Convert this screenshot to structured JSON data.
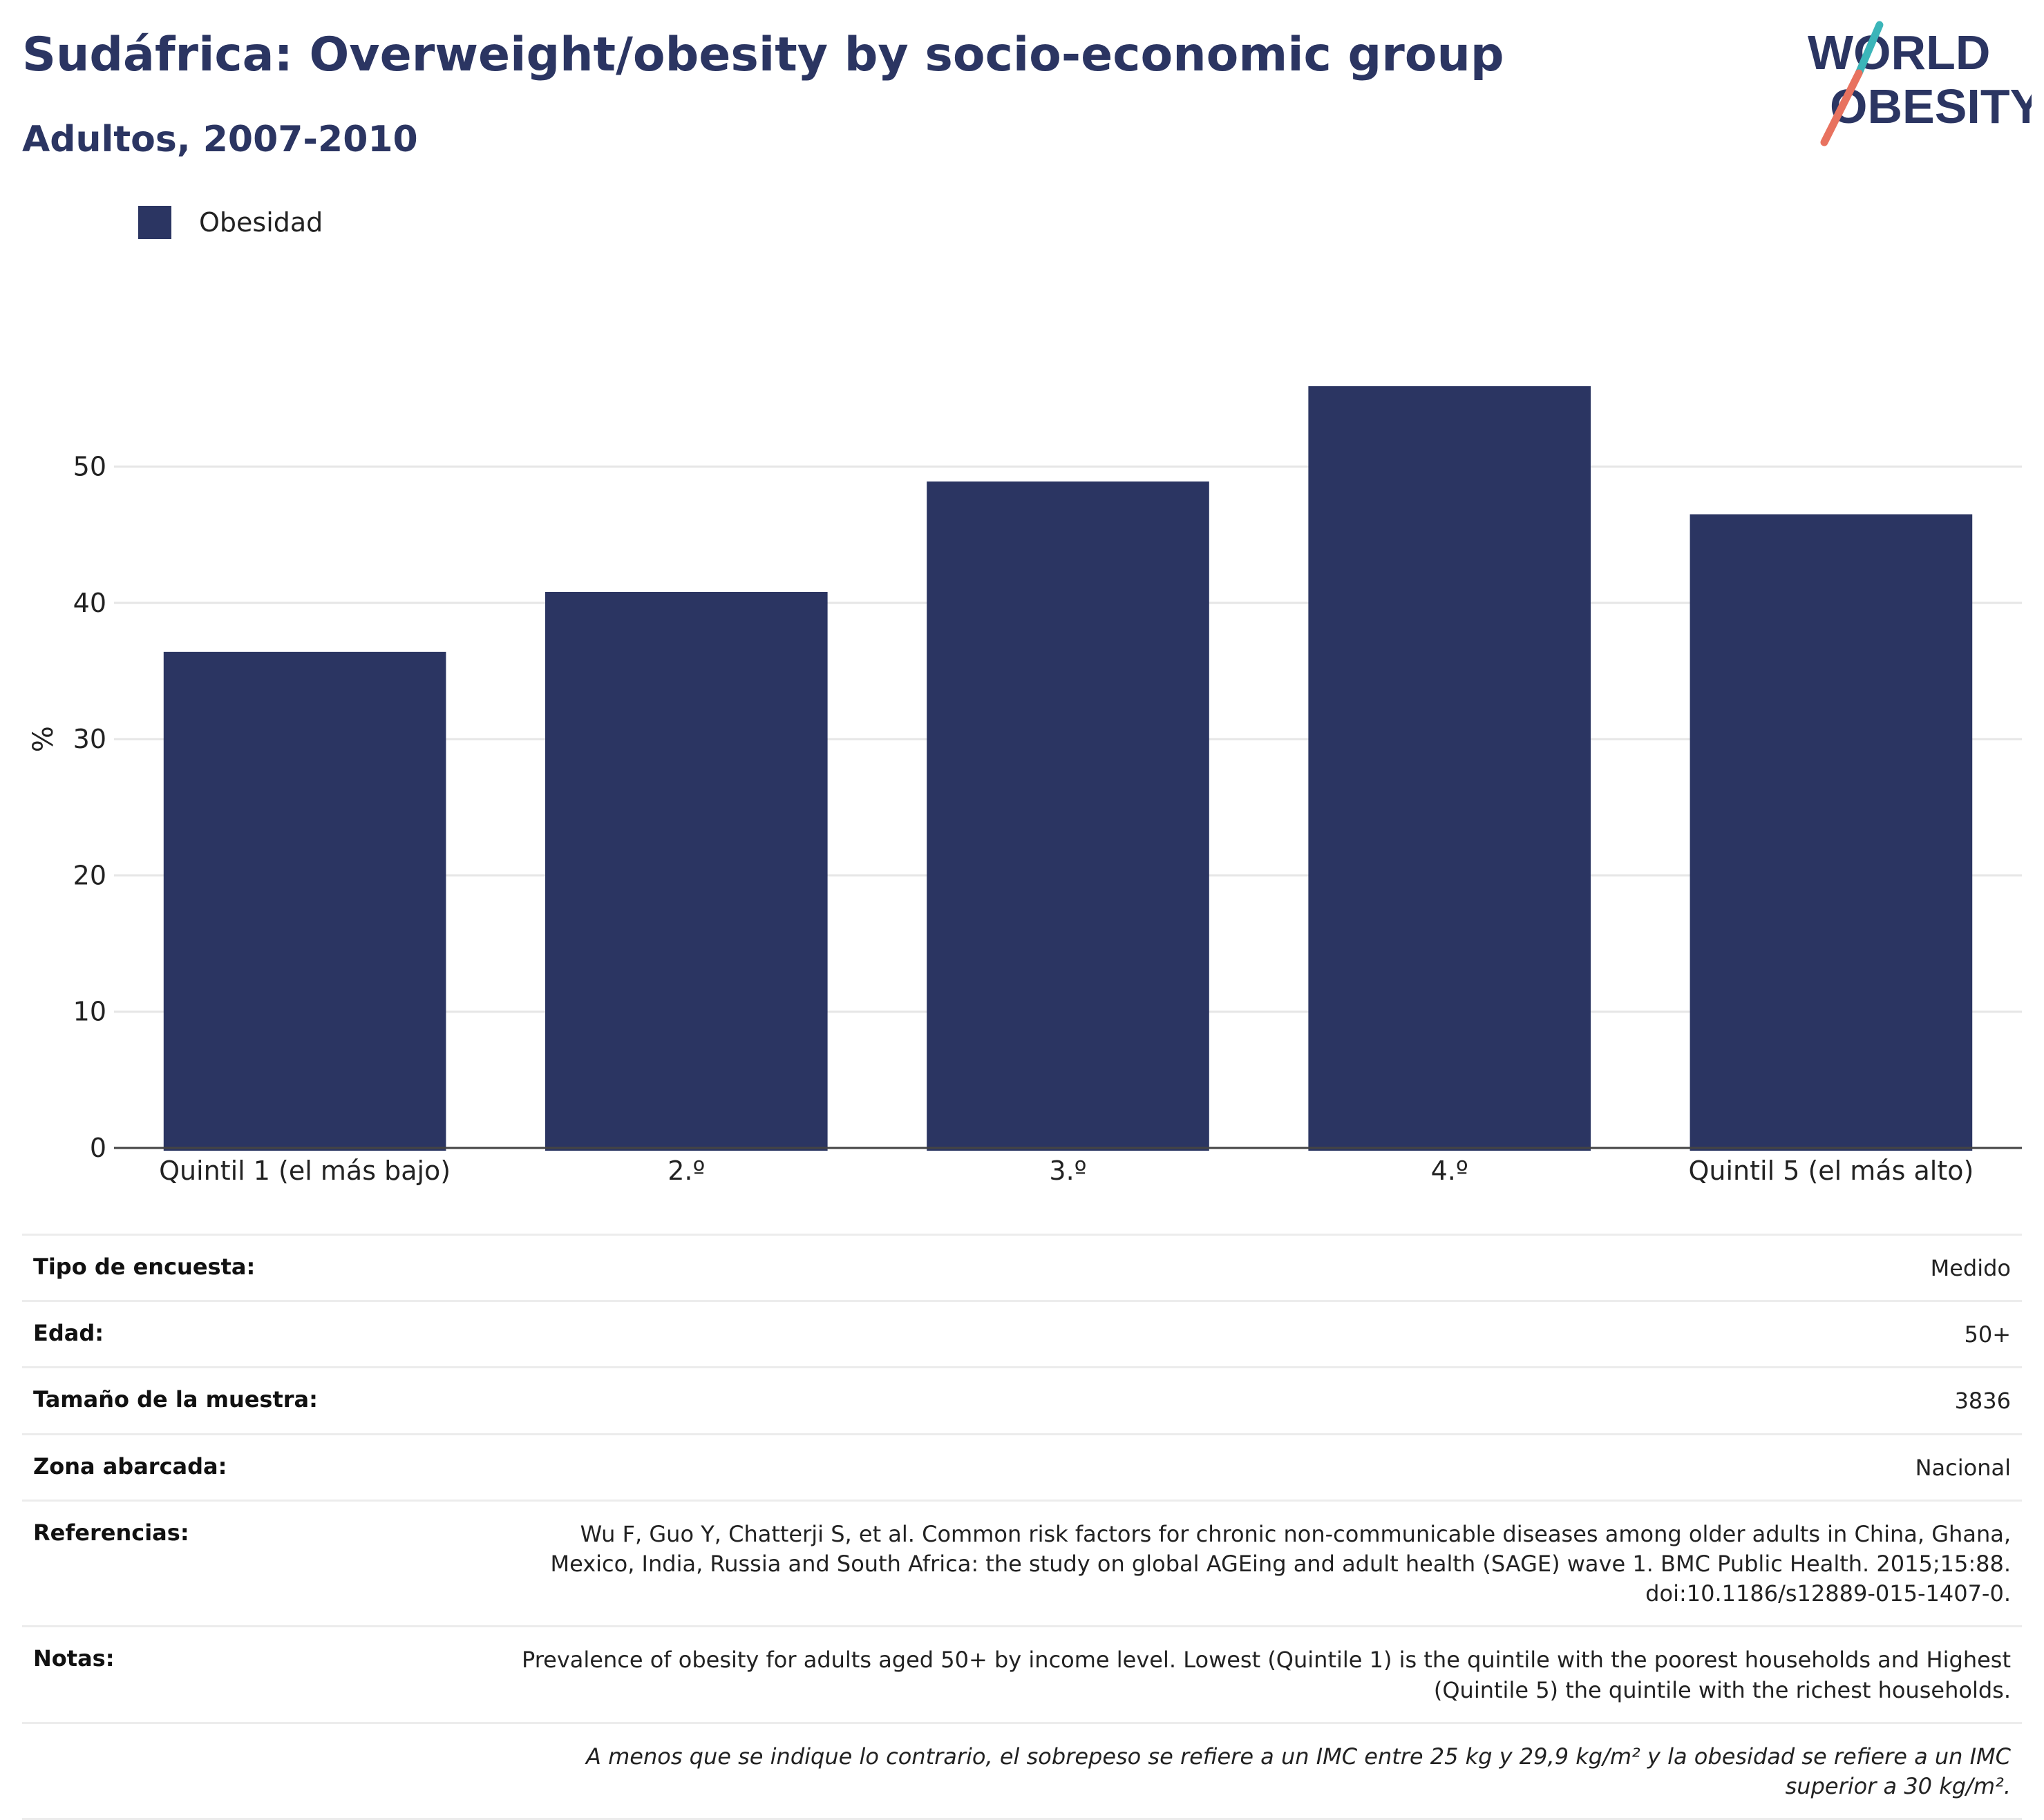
{
  "header": {
    "title": "Sudáfrica: Overweight/obesity by socio-economic group",
    "subtitle": "Adultos, 2007-2010",
    "logo_text_1": "WORLD",
    "logo_text_2": "OBESITY"
  },
  "legend": {
    "label": "Obesidad"
  },
  "colors": {
    "bar": "#2b3562",
    "title": "#2b3562",
    "logo_teal": "#3bb5b9",
    "logo_coral": "#e8725f"
  },
  "chart_data": {
    "type": "bar",
    "title": "Sudáfrica: Overweight/obesity by socio-economic group",
    "subtitle": "Adultos, 2007-2010",
    "categories": [
      "Quintil 1 (el más bajo)",
      "2.º",
      "3.º",
      "4.º",
      "Quintil 5 (el más alto)"
    ],
    "series": [
      {
        "name": "Obesidad",
        "values": [
          36.4,
          40.8,
          48.9,
          55.9,
          46.5
        ]
      }
    ],
    "ylabel": "%",
    "xlabel": "",
    "ylim": [
      0,
      60
    ],
    "yticks": [
      0,
      10,
      20,
      30,
      40,
      50
    ],
    "grid": true,
    "legend_position": "top-left"
  },
  "info": {
    "rows": [
      {
        "label": "Tipo de encuesta:",
        "value": "Medido"
      },
      {
        "label": "Edad:",
        "value": "50+"
      },
      {
        "label": "Tamaño de la muestra:",
        "value": "3836"
      },
      {
        "label": "Zona abarcada:",
        "value": "Nacional"
      },
      {
        "label": "Referencias:",
        "value": "Wu F, Guo Y, Chatterji S, et al. Common risk factors for chronic non-communicable diseases among older adults in China, Ghana, Mexico, India, Russia and South Africa: the study on global AGEing and adult health (SAGE) wave 1. BMC Public Health. 2015;15:88. doi:10.1186/s12889-015-1407-0."
      },
      {
        "label": "Notas:",
        "value": "Prevalence of obesity for adults aged 50+ by income level. Lowest (Quintile 1) is the quintile with the poorest households and Highest (Quintile 5) the quintile with the richest households."
      }
    ],
    "footnote": "A menos que se indique lo contrario, el sobrepeso se refiere a un IMC entre 25 kg y 29,9 kg/m² y la obesidad se refiere a un IMC superior a 30 kg/m²."
  }
}
